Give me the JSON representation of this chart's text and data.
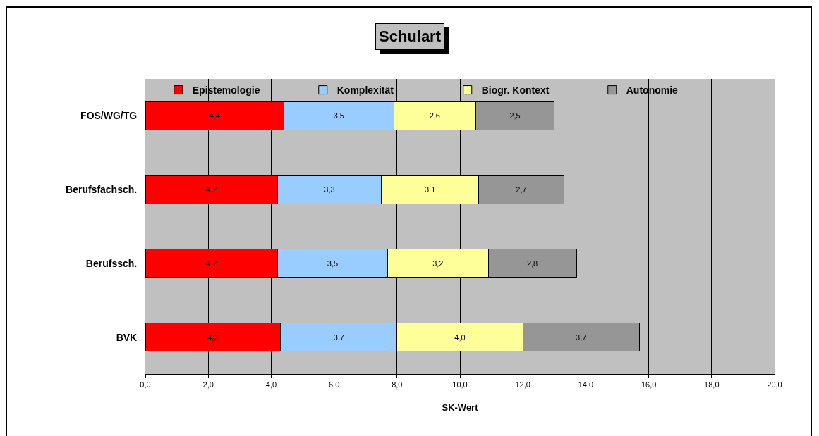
{
  "chart_data": {
    "type": "bar",
    "title": "Schulart",
    "xlabel": "SK-Wert",
    "orientation": "horizontal",
    "stacked": true,
    "categories": [
      "FOS/WG/TG",
      "Berufsfachsch.",
      "Berufssch.",
      "BVK"
    ],
    "series": [
      {
        "name": "Epistemologie",
        "color": "#ff0000",
        "values": [
          4.4,
          4.2,
          4.2,
          4.3
        ],
        "value_labels": [
          "4,4",
          "4,2",
          "4,2",
          "4,3"
        ]
      },
      {
        "name": "Komplexität",
        "color": "#99ccff",
        "values": [
          3.5,
          3.3,
          3.5,
          3.7
        ],
        "value_labels": [
          "3,5",
          "3,3",
          "3,5",
          "3,7"
        ]
      },
      {
        "name": "Biogr. Kontext",
        "color": "#ffff99",
        "values": [
          2.6,
          3.1,
          3.2,
          4.0
        ],
        "value_labels": [
          "2,6",
          "3,1",
          "3,2",
          "4,0"
        ]
      },
      {
        "name": "Autonomie",
        "color": "#969696",
        "values": [
          2.5,
          2.7,
          2.8,
          3.7
        ],
        "value_labels": [
          "2,5",
          "2,7",
          "2,8",
          "3,7"
        ]
      }
    ],
    "xlim": [
      0,
      20
    ],
    "xticks": [
      {
        "value": 0,
        "label": "0,0"
      },
      {
        "value": 2,
        "label": "2,0"
      },
      {
        "value": 4,
        "label": "4,0"
      },
      {
        "value": 6,
        "label": "6,0"
      },
      {
        "value": 8,
        "label": "8,0"
      },
      {
        "value": 10,
        "label": "10,0"
      },
      {
        "value": 12,
        "label": "12,0"
      },
      {
        "value": 14,
        "label": "14,0"
      },
      {
        "value": 16,
        "label": "16,0"
      },
      {
        "value": 18,
        "label": "18,0"
      },
      {
        "value": 20,
        "label": "20,0"
      }
    ],
    "grid": "x",
    "legend": "top"
  }
}
